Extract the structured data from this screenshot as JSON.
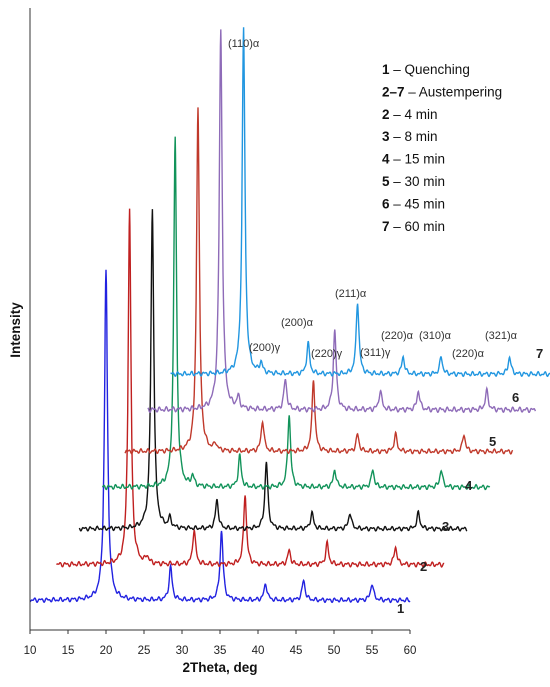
{
  "chart_data": {
    "type": "line",
    "title": "",
    "xlabel": "2Theta, deg",
    "ylabel": "Intensity",
    "xlim": [
      10,
      62
    ],
    "xticks": [
      "10",
      "15",
      "20",
      "25",
      "30",
      "35",
      "40",
      "45",
      "50",
      "55",
      "60"
    ],
    "grid": false,
    "legend_position": "top-right",
    "legend": [
      {
        "num": "1",
        "text": " – Quenching"
      },
      {
        "num": "2–7",
        "text": " – Austempering"
      },
      {
        "num": "2",
        "text": " – 4 min"
      },
      {
        "num": "3",
        "text": " – 8 min"
      },
      {
        "num": "4",
        "text": " – 15 min"
      },
      {
        "num": "5",
        "text": " – 30 min"
      },
      {
        "num": "6",
        "text": " – 45 min"
      },
      {
        "num": "7",
        "text": " – 60 min"
      }
    ],
    "peak_labels": [
      "(110)α",
      "(200)γ",
      "(200)α",
      "(220)γ",
      "(211)α",
      "(311)γ",
      "(220)α",
      "(310)α",
      "(220)α",
      "(321)α"
    ],
    "series": [
      {
        "name": "1",
        "color": "#2222e0",
        "x_shift": 0,
        "baseline": 0.05,
        "x_start": 10,
        "x_end": 60,
        "peaks": [
          [
            20.0,
            1.0
          ],
          [
            28.5,
            0.1
          ],
          [
            35.2,
            0.21
          ],
          [
            41.0,
            0.05
          ],
          [
            46.0,
            0.06
          ],
          [
            55.0,
            0.05
          ]
        ]
      },
      {
        "name": "2",
        "color": "#c02020",
        "x_shift": 3.1,
        "baseline": 0.11,
        "x_start": 13.5,
        "x_end": 64.5,
        "peaks": [
          [
            20.0,
            1.0
          ],
          [
            22.3,
            0.02
          ],
          [
            28.5,
            0.1
          ],
          [
            35.2,
            0.2
          ],
          [
            41.0,
            0.04
          ],
          [
            46.0,
            0.06
          ],
          [
            55.0,
            0.05
          ]
        ]
      },
      {
        "name": "3",
        "color": "#111111",
        "x_shift": 6.1,
        "baseline": 0.17,
        "x_start": 16.5,
        "x_end": 67.5,
        "peaks": [
          [
            20.0,
            1.0
          ],
          [
            22.3,
            0.03
          ],
          [
            28.5,
            0.09
          ],
          [
            35.0,
            0.21
          ],
          [
            41.0,
            0.05
          ],
          [
            46.0,
            0.05
          ],
          [
            55.0,
            0.05
          ]
        ]
      },
      {
        "name": "4",
        "color": "#12935a",
        "x_shift": 9.1,
        "baseline": 0.24,
        "x_start": 19.5,
        "x_end": 70.5,
        "peaks": [
          [
            20.0,
            1.0
          ],
          [
            22.3,
            0.03
          ],
          [
            28.5,
            0.09
          ],
          [
            35.0,
            0.21
          ],
          [
            41.0,
            0.05
          ],
          [
            46.0,
            0.05
          ],
          [
            55.0,
            0.05
          ]
        ]
      },
      {
        "name": "5",
        "color": "#c0392b",
        "x_shift": 12.1,
        "baseline": 0.3,
        "x_start": 22.5,
        "x_end": 73.5,
        "peaks": [
          [
            20.0,
            1.0
          ],
          [
            22.3,
            0.02
          ],
          [
            28.5,
            0.09
          ],
          [
            35.2,
            0.21
          ],
          [
            41.0,
            0.05
          ],
          [
            46.0,
            0.05
          ],
          [
            55.0,
            0.05
          ]
        ]
      },
      {
        "name": "6",
        "color": "#8e6bb8",
        "x_shift": 15.1,
        "baseline": 0.37,
        "x_start": 25.5,
        "x_end": 76.5,
        "peaks": [
          [
            20.0,
            1.0
          ],
          [
            22.3,
            0.03
          ],
          [
            28.5,
            0.08
          ],
          [
            35.0,
            0.21
          ],
          [
            41.0,
            0.05
          ],
          [
            46.0,
            0.05
          ],
          [
            55.0,
            0.05
          ]
        ]
      },
      {
        "name": "7",
        "color": "#2196e0",
        "x_shift": 18.1,
        "baseline": 0.43,
        "x_start": 28.5,
        "x_end": 79.5,
        "peaks": [
          [
            20.0,
            1.0
          ],
          [
            22.3,
            0.03
          ],
          [
            28.5,
            0.09
          ],
          [
            35.0,
            0.21
          ],
          [
            41.0,
            0.05
          ],
          [
            46.0,
            0.05
          ],
          [
            55.0,
            0.05
          ]
        ]
      }
    ]
  }
}
